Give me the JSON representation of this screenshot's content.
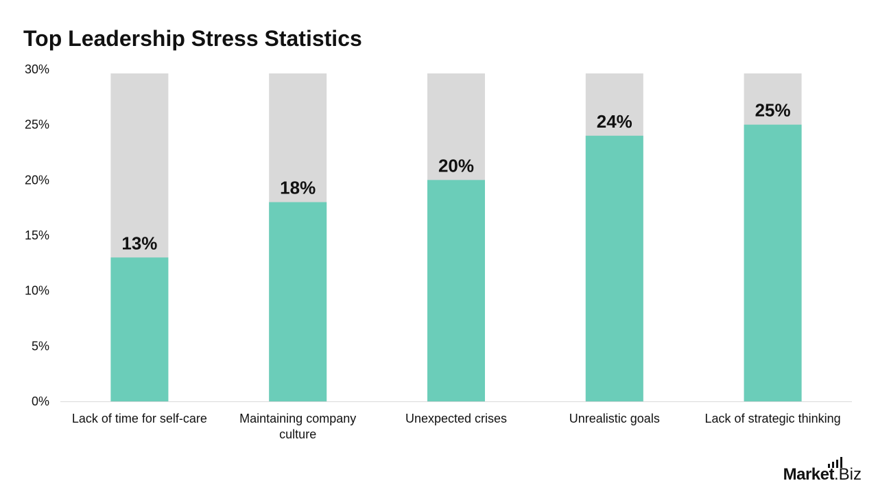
{
  "page": {
    "title": "Top Leadership Stress Statistics"
  },
  "logo": {
    "brand": "Market",
    "suffix": ".Biz"
  },
  "colors": {
    "bar": "#6bcdb9",
    "background_bar": "#d9d9d9",
    "text": "#111111",
    "axis": "#d9d9d9"
  },
  "chart_data": {
    "type": "bar",
    "title": "Top Leadership Stress Statistics",
    "categories": [
      "Lack of time for self-care",
      "Maintaining company culture",
      "Unexpected crises",
      "Unrealistic goals",
      "Lack of strategic thinking"
    ],
    "values": [
      13,
      18,
      20,
      24,
      25
    ],
    "data_labels": [
      "13%",
      "18%",
      "20%",
      "24%",
      "25%"
    ],
    "background_values": [
      30,
      30,
      30,
      30,
      30
    ],
    "ylim": [
      0,
      30
    ],
    "yticks": [
      0,
      5,
      10,
      15,
      20,
      25,
      30
    ],
    "ytick_labels": [
      "0%",
      "5%",
      "10%",
      "15%",
      "20%",
      "25%",
      "30%"
    ],
    "xlabel": "",
    "ylabel": "",
    "grid": false,
    "legend": "none"
  }
}
